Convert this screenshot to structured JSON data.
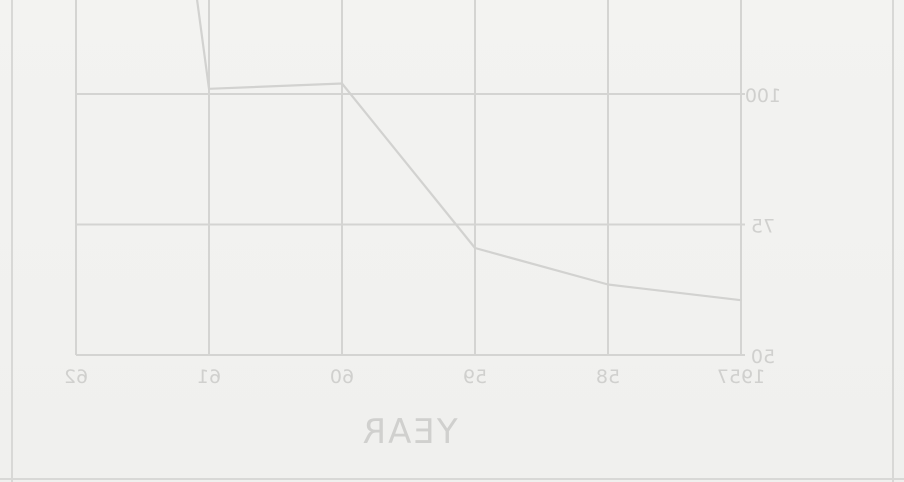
{
  "chart_data": {
    "type": "line",
    "title": "",
    "xlabel": "YEAR",
    "ylabel": "",
    "mirrored": true,
    "x_ticks": [
      {
        "x": 1957,
        "label": "1957"
      },
      {
        "x": 1958,
        "label": "58"
      },
      {
        "x": 1959,
        "label": "59"
      },
      {
        "x": 1960,
        "label": "60"
      },
      {
        "x": 1961,
        "label": "61"
      },
      {
        "x": 1962,
        "label": "62"
      }
    ],
    "y_ticks": [
      {
        "y": 50,
        "label": "50"
      },
      {
        "y": 75,
        "label": "75"
      },
      {
        "y": 100,
        "label": "100"
      }
    ],
    "xlim": [
      1957,
      1962
    ],
    "ylim": [
      50,
      118
    ],
    "grid": true,
    "series": [
      {
        "x": [
          1957,
          1958,
          1959,
          1960,
          1961,
          1961.1
        ],
        "y": [
          60.5,
          63.5,
          70.5,
          102,
          101,
          120
        ]
      }
    ],
    "colors": {
      "background": "#f2f2f0",
      "grid": "#d4d4d2",
      "line": "#d2d2d0",
      "text": "#d0d0ce"
    }
  }
}
